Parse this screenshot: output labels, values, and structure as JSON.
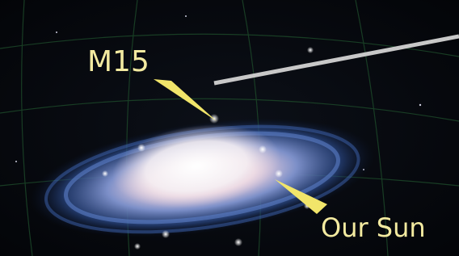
{
  "labels": {
    "cluster": "M15",
    "sun": "Our Sun"
  }
}
